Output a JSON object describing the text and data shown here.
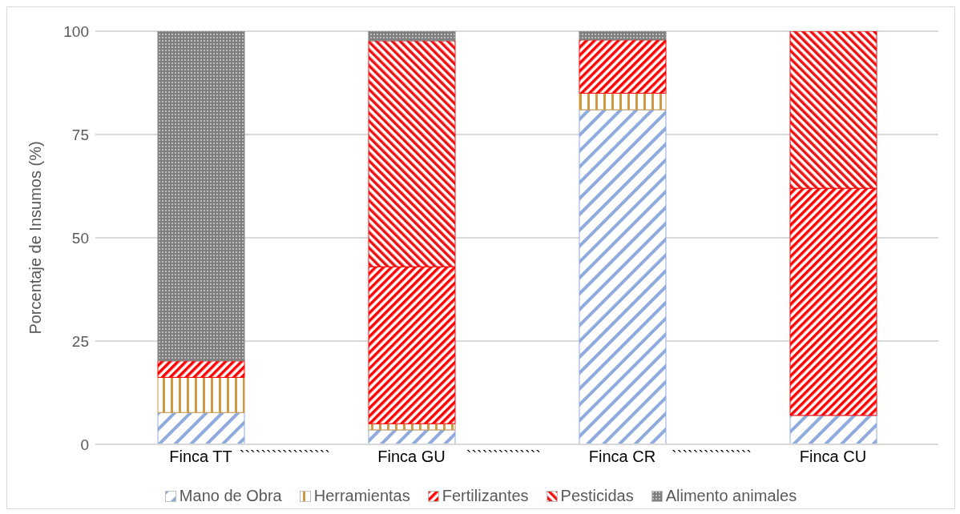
{
  "chart_data": {
    "type": "bar",
    "stacked": true,
    "ylabel": "Porcentaje de Insumos (%)",
    "categories": [
      "Finca TT",
      "Finca GU",
      "Finca CR",
      "Finca CU"
    ],
    "series": [
      {
        "name": "Mano de Obra",
        "color": "#8faadc",
        "values": [
          7.7,
          3.5,
          81,
          7
        ]
      },
      {
        "name": "Herramientas",
        "color": "#d09a44",
        "values": [
          8.5,
          1.5,
          4,
          0
        ]
      },
      {
        "name": "Fertilizantes",
        "color": "#ff0000",
        "values": [
          4,
          38,
          12.9,
          55
        ]
      },
      {
        "name": "Pesticidas",
        "color": "#ee1111",
        "values": [
          0,
          54.7,
          0,
          38
        ]
      },
      {
        "name": "Alimento animales",
        "color": "#808080",
        "values": [
          79.8,
          2.3,
          2.1,
          0
        ]
      }
    ],
    "ylim": [
      0,
      100
    ],
    "yticks": [
      0,
      25,
      50,
      75,
      100
    ],
    "grid": "y",
    "legend": "bottom",
    "annotations": [
      "`````````````````",
      "``````````````",
      "```````````````"
    ]
  }
}
